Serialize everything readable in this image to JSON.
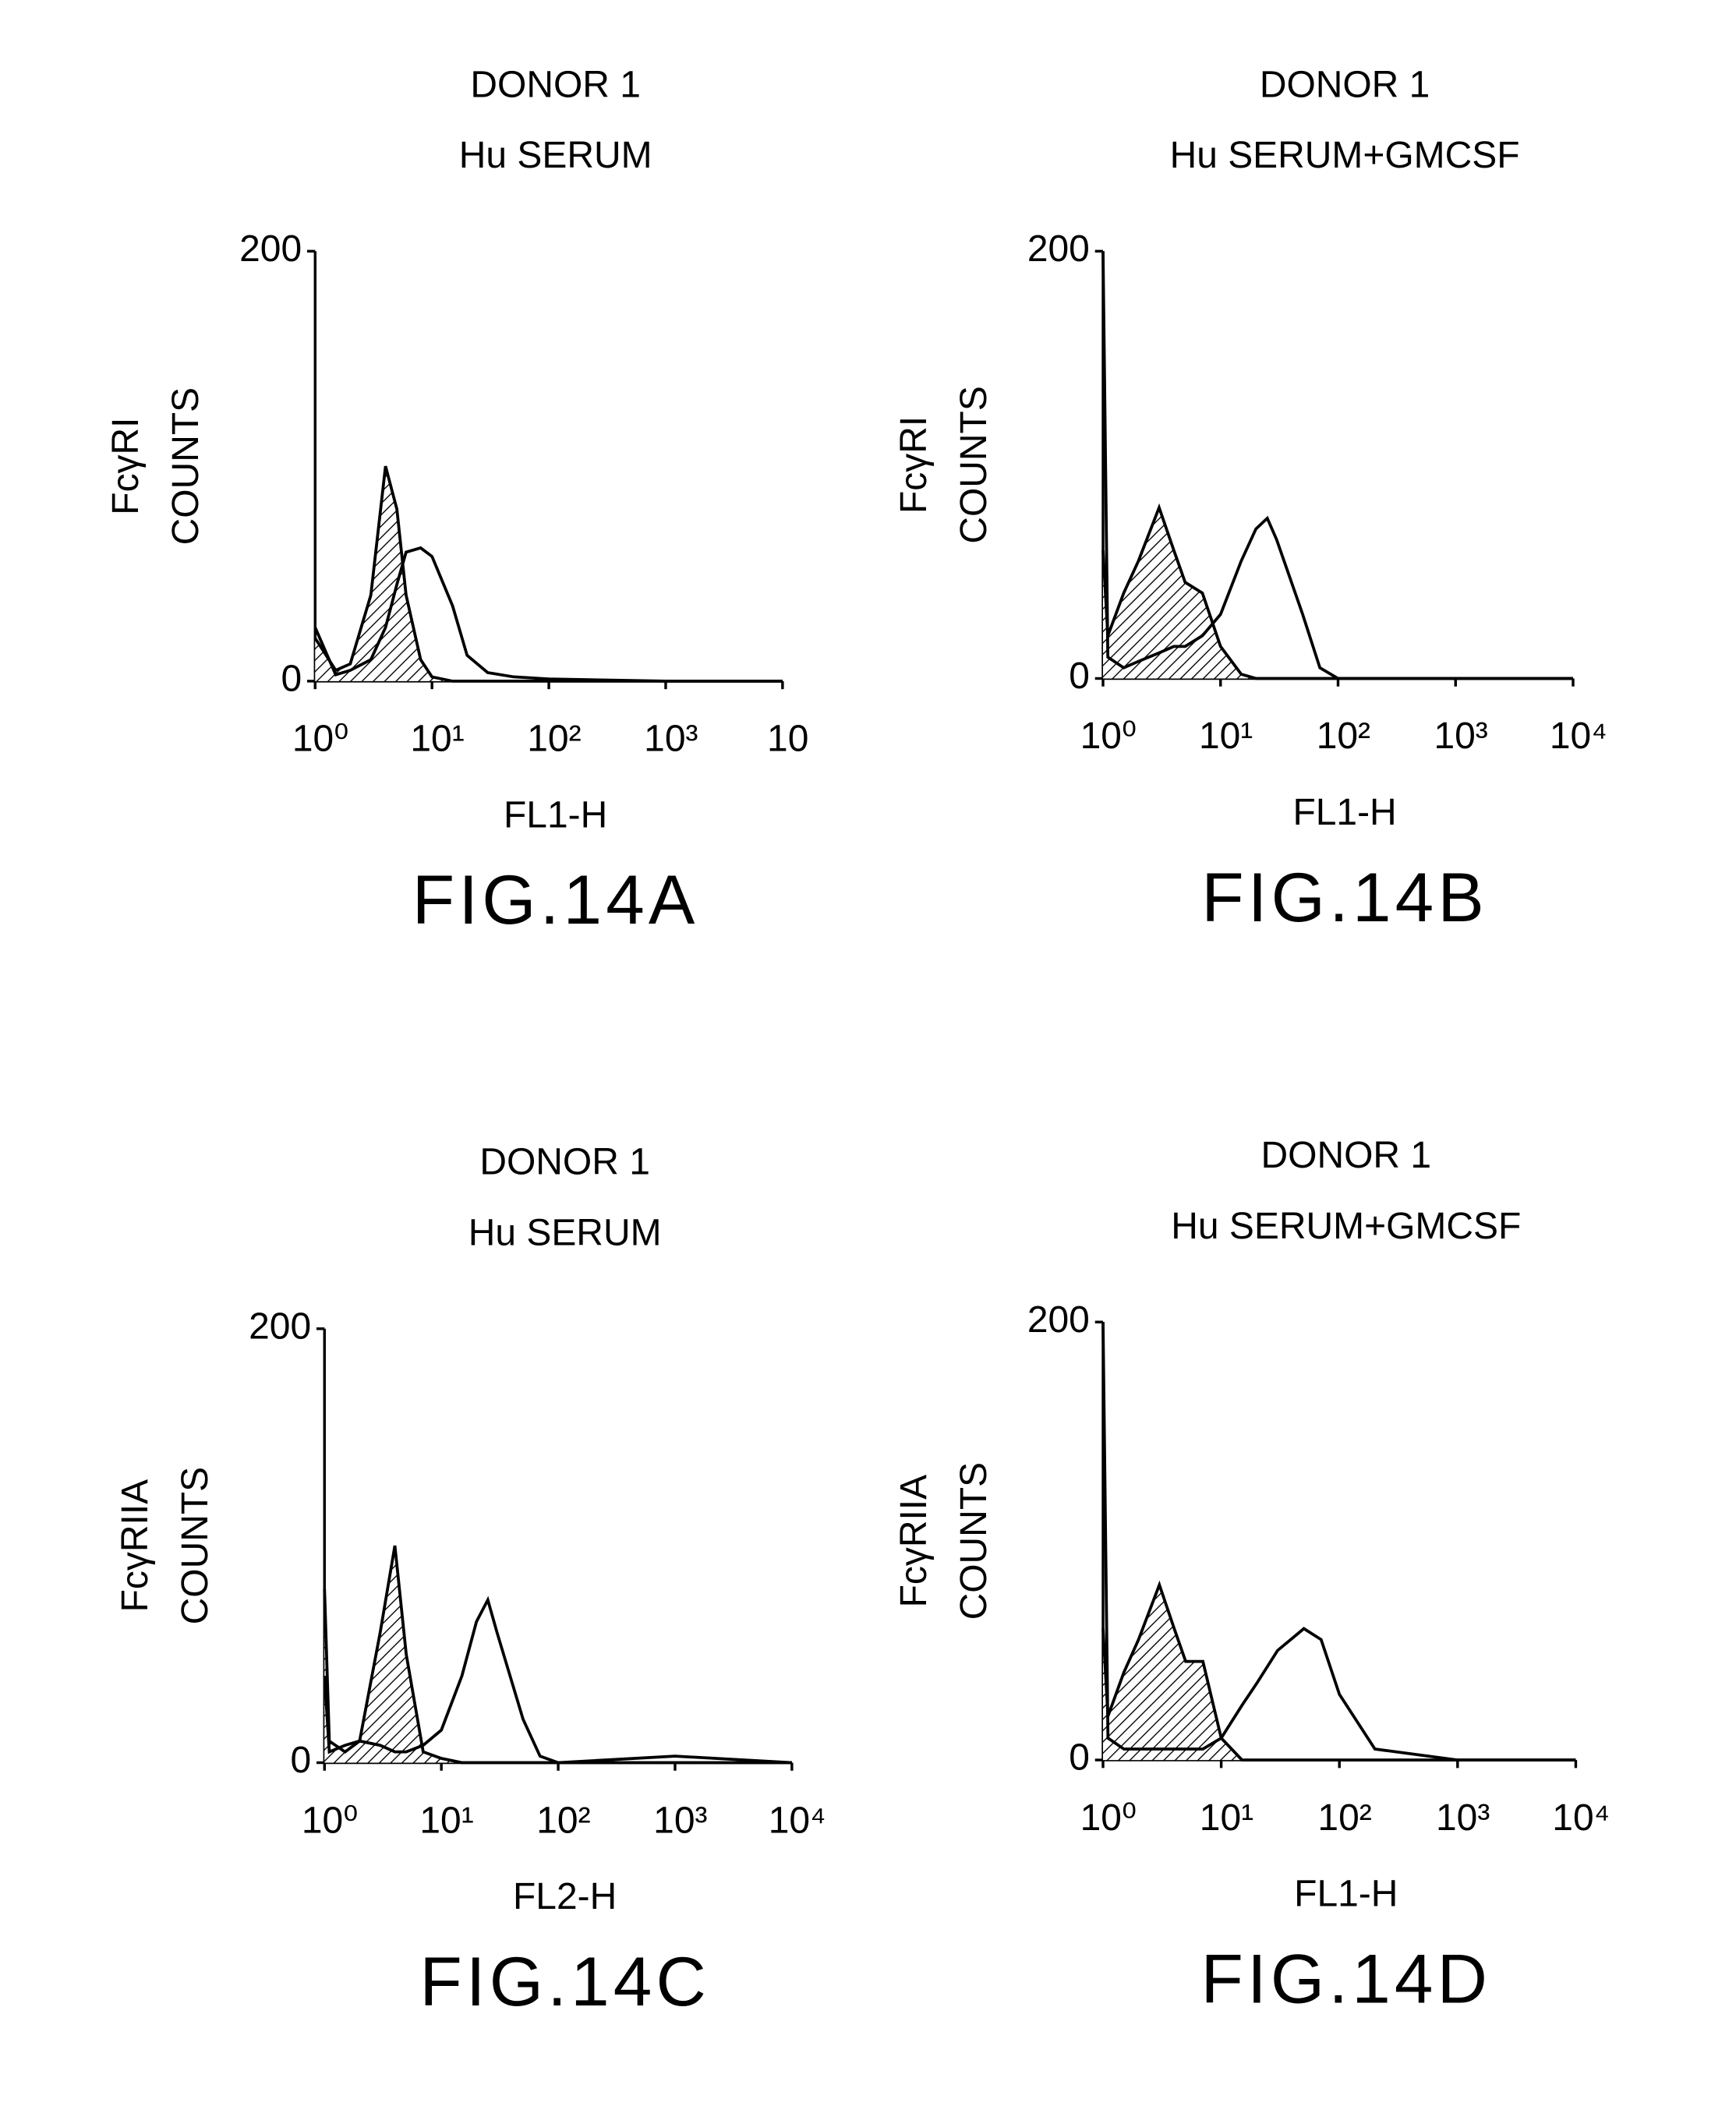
{
  "chart_data": [
    {
      "type": "line",
      "title": [
        "DONOR 1",
        "Hu SERUM"
      ],
      "ylabel": [
        "FcγRI",
        "COUNTS"
      ],
      "xlabel": "FL1-H",
      "caption": "FIG.14A",
      "xscale": "log",
      "xlim": [
        1,
        10000
      ],
      "ylim": [
        0,
        200
      ],
      "xticks": [
        {
          "value": 1,
          "label": "10⁰"
        },
        {
          "value": 10,
          "label": "10¹"
        },
        {
          "value": 100,
          "label": "10²"
        },
        {
          "value": 1000,
          "label": "10³"
        },
        {
          "value": 10000,
          "label": "10"
        }
      ],
      "yticks": [
        0,
        200
      ],
      "x": [
        1,
        1.5,
        2,
        3,
        4,
        5,
        6,
        8,
        10,
        15,
        20,
        30,
        50,
        100,
        1000,
        10000
      ],
      "series": [
        {
          "color": "#000000",
          "fill": "hatch",
          "values": [
            20,
            5,
            8,
            40,
            100,
            80,
            40,
            10,
            2,
            0,
            0,
            0,
            0,
            0,
            0,
            0
          ]
        },
        {
          "color": "#000000",
          "fill": "none",
          "values": [
            25,
            3,
            5,
            10,
            25,
            45,
            60,
            62,
            58,
            35,
            12,
            4,
            2,
            1,
            0,
            0
          ]
        }
      ]
    },
    {
      "type": "line",
      "title": [
        "DONOR 1",
        "Hu SERUM+GMCSF"
      ],
      "ylabel": [
        "FcγRI",
        "COUNTS"
      ],
      "xlabel": "FL1-H",
      "caption": "FIG.14B",
      "xscale": "log",
      "xlim": [
        1,
        10000
      ],
      "ylim": [
        0,
        200
      ],
      "xticks": [
        {
          "value": 1,
          "label": "10⁰"
        },
        {
          "value": 10,
          "label": "10¹"
        },
        {
          "value": 100,
          "label": "10²"
        },
        {
          "value": 1000,
          "label": "10³"
        },
        {
          "value": 10000,
          "label": "10⁴"
        }
      ],
      "yticks": [
        0,
        200
      ],
      "x": [
        1,
        1.1,
        1.5,
        2,
        3,
        4,
        5,
        7,
        10,
        15,
        20,
        25,
        30,
        50,
        70,
        100,
        1000,
        10000
      ],
      "series": [
        {
          "color": "#000000",
          "fill": "hatch",
          "values": [
            60,
            20,
            40,
            55,
            80,
            60,
            45,
            40,
            15,
            2,
            0,
            0,
            0,
            0,
            0,
            0,
            0,
            0
          ]
        },
        {
          "color": "#000000",
          "fill": "none",
          "values": [
            200,
            10,
            5,
            8,
            12,
            15,
            15,
            20,
            30,
            55,
            70,
            75,
            65,
            30,
            5,
            0,
            0,
            0
          ]
        }
      ]
    },
    {
      "type": "line",
      "title": [
        "DONOR 1",
        "Hu SERUM"
      ],
      "ylabel": [
        "FcγRIIA",
        "COUNTS"
      ],
      "xlabel": "FL2-H",
      "caption": "FIG.14C",
      "xscale": "log",
      "xlim": [
        1,
        10000
      ],
      "ylim": [
        0,
        200
      ],
      "xticks": [
        {
          "value": 1,
          "label": "10⁰"
        },
        {
          "value": 10,
          "label": "10¹"
        },
        {
          "value": 100,
          "label": "10²"
        },
        {
          "value": 1000,
          "label": "10³"
        },
        {
          "value": 10000,
          "label": "10⁴"
        }
      ],
      "yticks": [
        0,
        200
      ],
      "x": [
        1,
        1.1,
        1.5,
        2,
        3,
        4,
        5,
        7,
        10,
        15,
        20,
        25,
        30,
        50,
        70,
        100,
        1000,
        10000
      ],
      "series": [
        {
          "color": "#000000",
          "fill": "hatch",
          "values": [
            80,
            10,
            5,
            10,
            60,
            100,
            50,
            5,
            2,
            0,
            0,
            0,
            0,
            0,
            0,
            0,
            0,
            0
          ]
        },
        {
          "color": "#000000",
          "fill": "none",
          "values": [
            40,
            5,
            8,
            10,
            8,
            5,
            5,
            8,
            15,
            40,
            65,
            75,
            60,
            20,
            3,
            0,
            3,
            0
          ]
        }
      ]
    },
    {
      "type": "line",
      "title": [
        "DONOR 1",
        "Hu SERUM+GMCSF"
      ],
      "ylabel": [
        "FcγRIIA",
        "COUNTS"
      ],
      "xlabel": "FL1-H",
      "caption": "FIG.14D",
      "xscale": "log",
      "xlim": [
        1,
        10000
      ],
      "ylim": [
        0,
        200
      ],
      "xticks": [
        {
          "value": 1,
          "label": "10⁰"
        },
        {
          "value": 10,
          "label": "10¹"
        },
        {
          "value": 100,
          "label": "10²"
        },
        {
          "value": 1000,
          "label": "10³"
        },
        {
          "value": 10000,
          "label": "10⁴"
        }
      ],
      "yticks": [
        0,
        200
      ],
      "x": [
        1,
        1.1,
        1.5,
        2,
        3,
        4,
        5,
        7,
        10,
        15,
        20,
        30,
        50,
        70,
        100,
        200,
        1000,
        10000
      ],
      "series": [
        {
          "color": "#000000",
          "fill": "hatch",
          "values": [
            60,
            20,
            40,
            55,
            80,
            60,
            45,
            45,
            10,
            0,
            0,
            0,
            0,
            0,
            0,
            0,
            0,
            0
          ]
        },
        {
          "color": "#000000",
          "fill": "none",
          "values": [
            200,
            10,
            5,
            5,
            5,
            5,
            5,
            5,
            10,
            25,
            35,
            50,
            60,
            55,
            30,
            5,
            0,
            0
          ]
        }
      ]
    }
  ]
}
